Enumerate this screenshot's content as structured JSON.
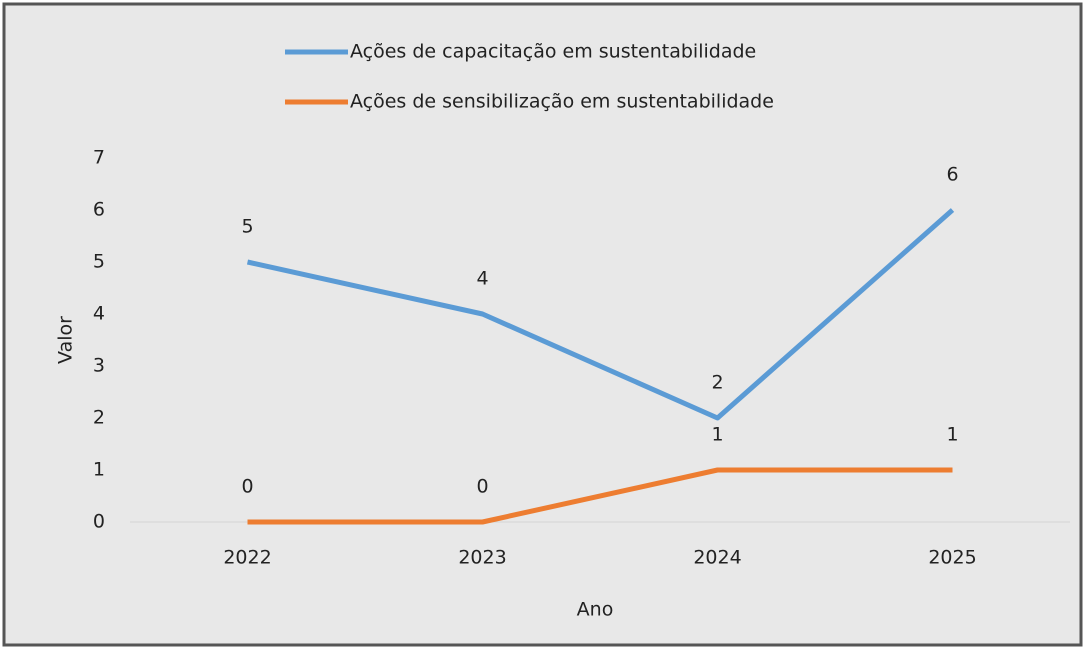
{
  "chart_data": {
    "type": "line",
    "x_label": "Ano",
    "y_label": "Valor",
    "categories": [
      "2022",
      "2023",
      "2024",
      "2025"
    ],
    "series": [
      {
        "name": "Ações de capacitação em sustentabilidade",
        "color": "#5b9bd5",
        "values": [
          5,
          4,
          2,
          6
        ]
      },
      {
        "name": "Ações de sensibilização em sustentabilidade",
        "color": "#ed7d31",
        "values": [
          0,
          0,
          1,
          1
        ]
      }
    ],
    "ylim": [
      0,
      7
    ],
    "yticks": [
      0,
      1,
      2,
      3,
      4,
      5,
      6,
      7
    ],
    "grid": false,
    "legend": "top"
  }
}
